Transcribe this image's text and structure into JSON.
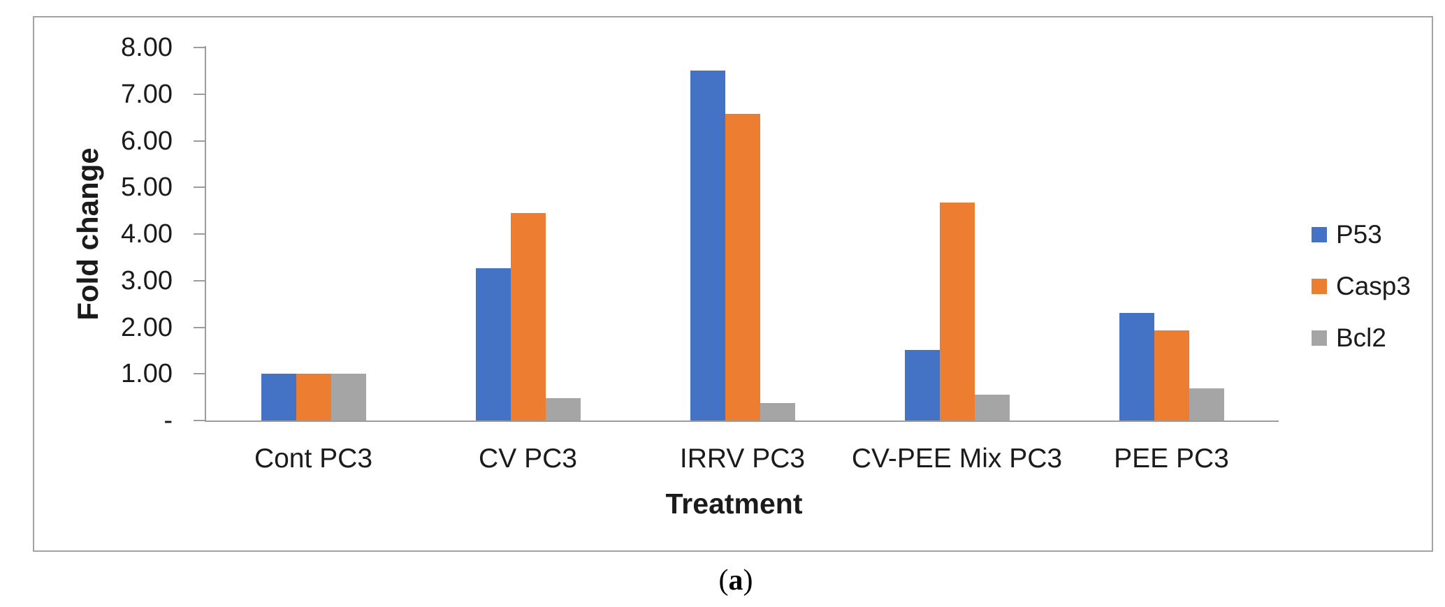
{
  "figure": {
    "caption": {
      "open": "(",
      "letter": "a",
      "close": ")"
    }
  },
  "chart_data": {
    "type": "bar",
    "title": "",
    "xlabel": "Treatment",
    "ylabel": "Fold change",
    "categories": [
      "Cont PC3",
      "CV PC3",
      "IRRV PC3",
      "CV-PEE Mix PC3",
      "PEE PC3"
    ],
    "series": [
      {
        "name": "P53",
        "color": "#4472C4",
        "values": [
          1.0,
          3.27,
          7.5,
          1.52,
          2.3
        ]
      },
      {
        "name": "Casp3",
        "color": "#ED7D31",
        "values": [
          1.0,
          4.45,
          6.58,
          4.68,
          1.94
        ]
      },
      {
        "name": "Bcl2",
        "color": "#A5A5A5",
        "values": [
          1.0,
          0.48,
          0.38,
          0.55,
          0.69
        ]
      }
    ],
    "y_axis": {
      "min": 0,
      "max": 8,
      "step": 1,
      "tick_labels": [
        "-",
        "1.00",
        "2.00",
        "3.00",
        "4.00",
        "5.00",
        "6.00",
        "7.00",
        "8.00"
      ]
    },
    "legend_position": "right",
    "grid": false,
    "colors": {
      "axis_line": "#9c9c9c",
      "border": "#a3a3a3",
      "text": "#1b1b1b"
    }
  }
}
